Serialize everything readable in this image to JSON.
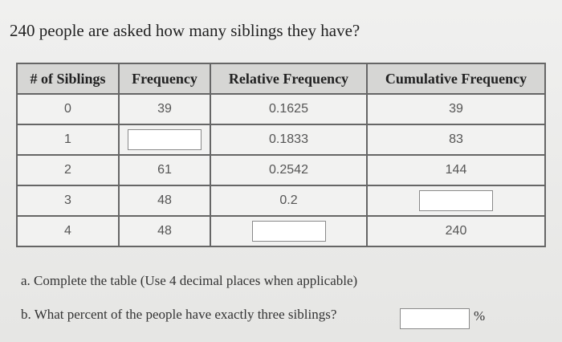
{
  "title": "240 people are asked how many siblings they have?",
  "table": {
    "headers": [
      "# of Siblings",
      "Frequency",
      "Relative Frequency",
      "Cumulative Frequency"
    ],
    "rows": [
      [
        "0",
        "39",
        "0.1625",
        "39"
      ],
      [
        "1",
        null,
        "0.1833",
        "83"
      ],
      [
        "2",
        "61",
        "0.2542",
        "144"
      ],
      [
        "3",
        "48",
        "0.2",
        null
      ],
      [
        "4",
        "48",
        null,
        "240"
      ]
    ]
  },
  "questions": {
    "a": "a. Complete the table (Use 4 decimal places when applicable)",
    "b": "b. What percent of the people have exactly three siblings?",
    "b_unit": "%"
  }
}
